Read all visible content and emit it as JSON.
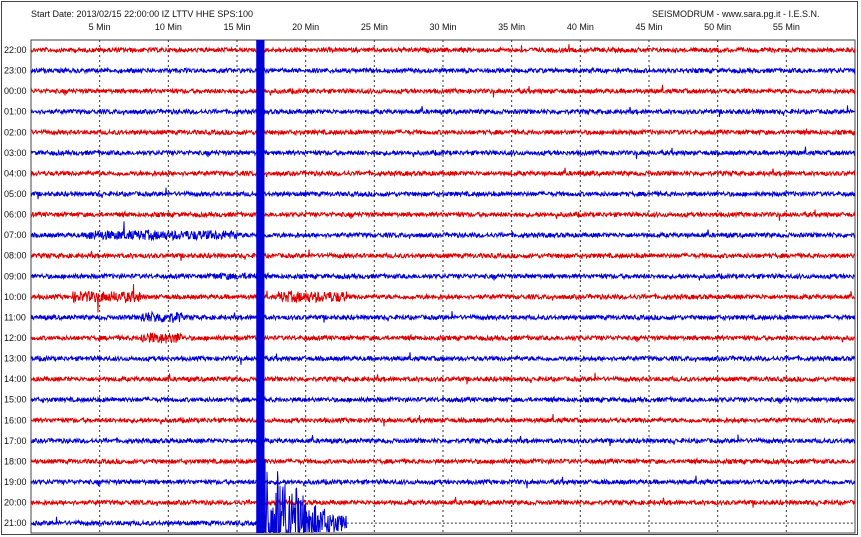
{
  "header": {
    "start_info": "Start Date: 2013/02/15 22:00:00 IZ LTTV HHE SPS:100",
    "credit": "SEISMODRUM - www.sara.pg.it - I.E.S.N."
  },
  "chart_data": {
    "type": "line",
    "subtype": "helicorder",
    "x_unit_label": "Min",
    "xlim": [
      0,
      60
    ],
    "x_ticks": [
      5,
      10,
      15,
      20,
      25,
      30,
      35,
      40,
      45,
      50,
      55
    ],
    "x_tick_labels": [
      "5 Min",
      "10 Min",
      "15 Min",
      "20 Min",
      "25 Min",
      "30 Min",
      "35 Min",
      "40 Min",
      "45 Min",
      "50 Min",
      "55 Min"
    ],
    "row_labels": [
      "22:00",
      "23:00",
      "00:00",
      "01:00",
      "02:00",
      "03:00",
      "04:00",
      "05:00",
      "06:00",
      "07:00",
      "08:00",
      "09:00",
      "10:00",
      "11:00",
      "12:00",
      "13:00",
      "14:00",
      "15:00",
      "16:00",
      "17:00",
      "18:00",
      "19:00",
      "20:00",
      "21:00"
    ],
    "row_colors": [
      "#e00000",
      "#0000d8"
    ],
    "grid": "dotted vertical at each tick",
    "event": {
      "row": "21:00",
      "onset_min": 16.4,
      "saturated_until_min": 17.0,
      "trace_end_min": 23.0
    },
    "last_row_end_min": 23.0
  }
}
